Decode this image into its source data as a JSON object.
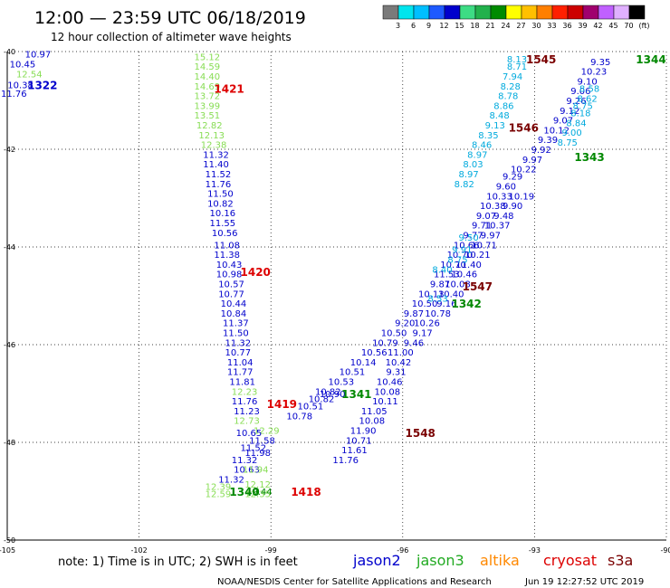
{
  "header": {
    "title": "12:00 — 23:59 UTC 06/18/2019",
    "subtitle": "12 hour collection of altimeter wave heights"
  },
  "colorbar": {
    "labels": [
      "3",
      "6",
      "9",
      "12",
      "15",
      "18",
      "21",
      "24",
      "27",
      "30",
      "33",
      "36",
      "39",
      "42",
      "45",
      "70",
      "(ft)"
    ],
    "colors": [
      "#7a7a7a",
      "#00e5ee",
      "#00bfff",
      "#1e5aff",
      "#0000cd",
      "#3ddc84",
      "#22b14c",
      "#008b00",
      "#ffff00",
      "#ffc000",
      "#ff7f00",
      "#ff2000",
      "#cc0000",
      "#a0006e",
      "#c060ff",
      "#e0b0ff",
      "#000000"
    ]
  },
  "footer": {
    "note": "note:  1) Time is in UTC;  2) SWH is in feet",
    "credit": "NOAA/NESDIS Center for Satellite Applications and Research",
    "timestamp": "Jun 19 12:27:52 UTC 2019"
  },
  "chart_data": {
    "type": "scatter",
    "xlim": [
      -105,
      -90
    ],
    "ylim": [
      -50,
      -40
    ],
    "xticks": [
      -105,
      -102,
      -99,
      -96,
      -93,
      -90
    ],
    "yticks": [
      -40,
      -42,
      -44,
      -46,
      -48,
      -50
    ],
    "grid": true,
    "legend_position": "bottom",
    "legend": [
      {
        "name": "jason2",
        "color": "#0000cc"
      },
      {
        "name": "jason3",
        "color": "#22aa22"
      },
      {
        "name": "altika",
        "color": "#ff8800"
      },
      {
        "name": "cryosat",
        "color": "#dd0000"
      },
      {
        "name": "s3a",
        "color": "#7a0000"
      }
    ],
    "tracks": [
      {
        "color": "#0000cc",
        "points": [
          {
            "x": -104.3,
            "y": -40.05,
            "v": "10.97"
          },
          {
            "x": -104.65,
            "y": -40.25,
            "v": "10.45"
          },
          {
            "x": -104.7,
            "y": -40.68,
            "v": "10.38"
          },
          {
            "x": -104.85,
            "y": -40.85,
            "v": "11.76"
          }
        ]
      },
      {
        "color": "#88dd55",
        "points": [
          {
            "x": -104.5,
            "y": -40.45,
            "v": "12.54"
          }
        ]
      },
      {
        "color": "#88dd55",
        "points": [
          {
            "x": -100.45,
            "y": -40.1,
            "v": "15.12"
          },
          {
            "x": -100.45,
            "y": -40.3,
            "v": "14.59"
          },
          {
            "x": -100.45,
            "y": -40.5,
            "v": "14.40"
          },
          {
            "x": -100.45,
            "y": -40.7,
            "v": "14.69"
          },
          {
            "x": -100.45,
            "y": -40.9,
            "v": "13.72"
          },
          {
            "x": -100.45,
            "y": -41.1,
            "v": "13.99"
          },
          {
            "x": -100.45,
            "y": -41.3,
            "v": "13.51"
          },
          {
            "x": -100.4,
            "y": -41.5,
            "v": "12.82"
          },
          {
            "x": -100.35,
            "y": -41.7,
            "v": "12.13"
          },
          {
            "x": -100.3,
            "y": -41.9,
            "v": "12.38"
          }
        ]
      },
      {
        "color": "#0000cc",
        "points": [
          {
            "x": -100.25,
            "y": -42.1,
            "v": "11.32"
          },
          {
            "x": -100.25,
            "y": -42.3,
            "v": "11.40"
          },
          {
            "x": -100.2,
            "y": -42.5,
            "v": "11.52"
          },
          {
            "x": -100.2,
            "y": -42.7,
            "v": "11.76"
          },
          {
            "x": -100.15,
            "y": -42.9,
            "v": "11.50"
          },
          {
            "x": -100.15,
            "y": -43.1,
            "v": "10.82"
          },
          {
            "x": -100.1,
            "y": -43.3,
            "v": "10.16"
          },
          {
            "x": -100.1,
            "y": -43.5,
            "v": "11.55"
          },
          {
            "x": -100.05,
            "y": -43.7,
            "v": "10.56"
          },
          {
            "x": -100.0,
            "y": -43.95,
            "v": "11.08"
          },
          {
            "x": -100.0,
            "y": -44.15,
            "v": "11.38"
          },
          {
            "x": -99.95,
            "y": -44.35,
            "v": "10.43"
          },
          {
            "x": -99.95,
            "y": -44.55,
            "v": "10.98"
          },
          {
            "x": -99.9,
            "y": -44.75,
            "v": "10.57"
          },
          {
            "x": -99.9,
            "y": -44.95,
            "v": "10.77"
          },
          {
            "x": -99.85,
            "y": -45.15,
            "v": "10.44"
          },
          {
            "x": -99.85,
            "y": -45.35,
            "v": "10.84"
          },
          {
            "x": -99.8,
            "y": -45.55,
            "v": "11.37"
          },
          {
            "x": -99.8,
            "y": -45.75,
            "v": "11.50"
          },
          {
            "x": -99.75,
            "y": -45.95,
            "v": "11.32"
          },
          {
            "x": -99.75,
            "y": -46.15,
            "v": "10.77"
          },
          {
            "x": -99.7,
            "y": -46.35,
            "v": "11.04"
          },
          {
            "x": -99.7,
            "y": -46.55,
            "v": "11.77"
          },
          {
            "x": -99.65,
            "y": -46.75,
            "v": "11.81"
          }
        ]
      },
      {
        "color": "#88dd55",
        "points": [
          {
            "x": -99.6,
            "y": -46.95,
            "v": "12.23"
          }
        ]
      },
      {
        "color": "#0000cc",
        "points": [
          {
            "x": -99.6,
            "y": -47.15,
            "v": "11.76"
          },
          {
            "x": -99.55,
            "y": -47.35,
            "v": "11.23"
          }
        ]
      },
      {
        "color": "#88dd55",
        "points": [
          {
            "x": -99.55,
            "y": -47.55,
            "v": "12.73"
          },
          {
            "x": -99.1,
            "y": -47.75,
            "v": "12.29"
          }
        ]
      },
      {
        "color": "#0000cc",
        "points": [
          {
            "x": -99.5,
            "y": -47.8,
            "v": "10.65"
          },
          {
            "x": -99.2,
            "y": -47.95,
            "v": "11.58"
          },
          {
            "x": -99.4,
            "y": -48.1,
            "v": "11.52"
          },
          {
            "x": -99.3,
            "y": -48.2,
            "v": "11.98"
          },
          {
            "x": -99.6,
            "y": -48.35,
            "v": "11.32"
          },
          {
            "x": -99.55,
            "y": -48.55,
            "v": "10.63"
          },
          {
            "x": -99.9,
            "y": -48.75,
            "v": "11.32"
          }
        ]
      },
      {
        "color": "#88dd55",
        "points": [
          {
            "x": -99.35,
            "y": -48.55,
            "v": "11.94"
          },
          {
            "x": -99.3,
            "y": -48.85,
            "v": "12.12"
          },
          {
            "x": -100.2,
            "y": -48.9,
            "v": "12.39"
          },
          {
            "x": -100.2,
            "y": -49.05,
            "v": "12.59"
          },
          {
            "x": -99.3,
            "y": -49.05,
            "v": "12.35"
          }
        ]
      },
      {
        "color": "#0000cc",
        "points": [
          {
            "x": -97.6,
            "y": -47.0,
            "v": "10.90"
          },
          {
            "x": -97.85,
            "y": -47.1,
            "v": "10.82"
          },
          {
            "x": -98.1,
            "y": -47.25,
            "v": "10.51"
          },
          {
            "x": -98.35,
            "y": -47.45,
            "v": "10.78"
          },
          {
            "x": -97.7,
            "y": -46.95,
            "v": "10.82"
          },
          {
            "x": -97.4,
            "y": -46.75,
            "v": "10.53"
          },
          {
            "x": -97.15,
            "y": -46.55,
            "v": "10.51"
          },
          {
            "x": -96.9,
            "y": -46.35,
            "v": "10.14"
          },
          {
            "x": -96.65,
            "y": -46.15,
            "v": "10.56"
          },
          {
            "x": -96.4,
            "y": -45.95,
            "v": "10.79"
          },
          {
            "x": -96.2,
            "y": -45.75,
            "v": "10.50"
          },
          {
            "x": -95.95,
            "y": -45.55,
            "v": "9.20"
          },
          {
            "x": -95.75,
            "y": -45.35,
            "v": "9.87"
          },
          {
            "x": -95.5,
            "y": -45.15,
            "v": "10.50"
          },
          {
            "x": -95.35,
            "y": -44.95,
            "v": "10.13"
          },
          {
            "x": -95.15,
            "y": -44.75,
            "v": "9.87"
          },
          {
            "x": -95.0,
            "y": -44.55,
            "v": "11.53"
          },
          {
            "x": -94.85,
            "y": -44.35,
            "v": "10.70"
          },
          {
            "x": -94.7,
            "y": -44.15,
            "v": "10.70"
          },
          {
            "x": -94.55,
            "y": -43.95,
            "v": "10.66"
          },
          {
            "x": -94.4,
            "y": -43.75,
            "v": "9.77"
          },
          {
            "x": -94.2,
            "y": -43.55,
            "v": "9.71"
          },
          {
            "x": -94.1,
            "y": -43.35,
            "v": "9.07"
          },
          {
            "x": -93.95,
            "y": -43.15,
            "v": "10.38"
          },
          {
            "x": -93.8,
            "y": -42.95,
            "v": "10.33"
          },
          {
            "x": -93.65,
            "y": -42.75,
            "v": "9.60"
          },
          {
            "x": -93.5,
            "y": -42.55,
            "v": "9.29"
          },
          {
            "x": -93.25,
            "y": -42.4,
            "v": "10.22"
          },
          {
            "x": -93.05,
            "y": -42.2,
            "v": "9.97"
          },
          {
            "x": -92.85,
            "y": -42.0,
            "v": "9.92"
          },
          {
            "x": -92.7,
            "y": -41.8,
            "v": "9.39"
          },
          {
            "x": -92.5,
            "y": -41.6,
            "v": "10.12"
          },
          {
            "x": -92.35,
            "y": -41.4,
            "v": "9.07"
          },
          {
            "x": -92.2,
            "y": -41.2,
            "v": "9.12"
          },
          {
            "x": -92.05,
            "y": -41.0,
            "v": "9.26"
          },
          {
            "x": -91.95,
            "y": -40.8,
            "v": "9.06"
          },
          {
            "x": -91.8,
            "y": -40.6,
            "v": "9.10"
          },
          {
            "x": -91.65,
            "y": -40.4,
            "v": "10.23"
          },
          {
            "x": -91.5,
            "y": -40.2,
            "v": "9.35"
          },
          {
            "x": -93.3,
            "y": -42.95,
            "v": "10.19"
          },
          {
            "x": -93.5,
            "y": -43.15,
            "v": "9.90"
          },
          {
            "x": -93.7,
            "y": -43.35,
            "v": "9.48"
          },
          {
            "x": -93.85,
            "y": -43.55,
            "v": "10.37"
          },
          {
            "x": -94.0,
            "y": -43.75,
            "v": "9.97"
          },
          {
            "x": -94.15,
            "y": -43.95,
            "v": "10.71"
          },
          {
            "x": -94.3,
            "y": -44.15,
            "v": "10.21"
          },
          {
            "x": -94.5,
            "y": -44.35,
            "v": "11.40"
          },
          {
            "x": -94.6,
            "y": -44.55,
            "v": "10.46"
          },
          {
            "x": -94.75,
            "y": -44.75,
            "v": "10.08"
          },
          {
            "x": -94.9,
            "y": -44.95,
            "v": "10.40"
          },
          {
            "x": -95.0,
            "y": -45.15,
            "v": "9.16"
          },
          {
            "x": -95.2,
            "y": -45.35,
            "v": "10.78"
          },
          {
            "x": -95.45,
            "y": -45.55,
            "v": "10.26"
          },
          {
            "x": -95.55,
            "y": -45.75,
            "v": "9.17"
          },
          {
            "x": -95.75,
            "y": -45.95,
            "v": "9.46"
          },
          {
            "x": -96.05,
            "y": -46.15,
            "v": "11.00"
          },
          {
            "x": -96.1,
            "y": -46.35,
            "v": "10.42"
          },
          {
            "x": -96.15,
            "y": -46.55,
            "v": "9.31"
          },
          {
            "x": -96.3,
            "y": -46.75,
            "v": "10.46"
          },
          {
            "x": -96.35,
            "y": -46.95,
            "v": "10.08"
          },
          {
            "x": -96.4,
            "y": -47.15,
            "v": "10.11"
          },
          {
            "x": -96.65,
            "y": -47.35,
            "v": "11.05"
          },
          {
            "x": -96.7,
            "y": -47.55,
            "v": "10.08"
          },
          {
            "x": -96.9,
            "y": -47.75,
            "v": "11.90"
          },
          {
            "x": -97.0,
            "y": -47.95,
            "v": "10.71"
          },
          {
            "x": -97.1,
            "y": -48.15,
            "v": "11.61"
          },
          {
            "x": -97.3,
            "y": -48.35,
            "v": "11.76"
          }
        ]
      },
      {
        "color": "#00aadd",
        "points": [
          {
            "x": -93.4,
            "y": -40.15,
            "v": "8.13"
          },
          {
            "x": -93.4,
            "y": -40.3,
            "v": "8.71"
          },
          {
            "x": -93.5,
            "y": -40.5,
            "v": "7.94"
          },
          {
            "x": -93.55,
            "y": -40.7,
            "v": "8.28"
          },
          {
            "x": -93.6,
            "y": -40.9,
            "v": "8.78"
          },
          {
            "x": -93.7,
            "y": -41.1,
            "v": "8.86"
          },
          {
            "x": -93.8,
            "y": -41.3,
            "v": "8.48"
          },
          {
            "x": -93.9,
            "y": -41.5,
            "v": "9.13"
          },
          {
            "x": -94.05,
            "y": -41.7,
            "v": "8.35"
          },
          {
            "x": -94.2,
            "y": -41.9,
            "v": "8.46"
          },
          {
            "x": -94.3,
            "y": -42.1,
            "v": "8.97"
          },
          {
            "x": -94.4,
            "y": -42.3,
            "v": "8.03"
          },
          {
            "x": -94.5,
            "y": -42.5,
            "v": "8.97"
          },
          {
            "x": -94.6,
            "y": -42.7,
            "v": "8.82"
          },
          {
            "x": -94.5,
            "y": -43.8,
            "v": "9.50"
          },
          {
            "x": -94.65,
            "y": -44.05,
            "v": "9.91"
          },
          {
            "x": -94.75,
            "y": -44.25,
            "v": "8.75"
          },
          {
            "x": -95.1,
            "y": -44.45,
            "v": "8.40"
          },
          {
            "x": -95.2,
            "y": -45.05,
            "v": "8.53"
          },
          {
            "x": -91.9,
            "y": -41.1,
            "v": "8.75"
          },
          {
            "x": -91.8,
            "y": -40.95,
            "v": "8.62"
          },
          {
            "x": -91.75,
            "y": -40.75,
            "v": "8.58"
          },
          {
            "x": -91.95,
            "y": -41.25,
            "v": "8.18"
          },
          {
            "x": -92.05,
            "y": -41.45,
            "v": "8.84"
          },
          {
            "x": -92.15,
            "y": -41.65,
            "v": "9.00"
          },
          {
            "x": -92.25,
            "y": -41.85,
            "v": "8.75"
          }
        ]
      },
      {
        "color": "#008800",
        "points": [
          {
            "x": -99.2,
            "y": -49.0,
            "v": "9.44"
          }
        ]
      }
    ],
    "pass_labels": [
      {
        "text": "1322",
        "x": -104.2,
        "y": -40.68,
        "color": "#0000cc"
      },
      {
        "text": "1421",
        "x": -99.95,
        "y": -40.75,
        "color": "#dd0000"
      },
      {
        "text": "1420",
        "x": -99.35,
        "y": -44.5,
        "color": "#dd0000"
      },
      {
        "text": "1419",
        "x": -98.75,
        "y": -47.2,
        "color": "#dd0000"
      },
      {
        "text": "1418",
        "x": -98.2,
        "y": -49.0,
        "color": "#dd0000"
      },
      {
        "text": "1340",
        "x": -99.6,
        "y": -49.0,
        "color": "#008800"
      },
      {
        "text": "1341",
        "x": -97.05,
        "y": -47.0,
        "color": "#008800"
      },
      {
        "text": "1342",
        "x": -94.55,
        "y": -45.15,
        "color": "#008800"
      },
      {
        "text": "1343",
        "x": -91.75,
        "y": -42.15,
        "color": "#008800"
      },
      {
        "text": "1344",
        "x": -90.35,
        "y": -40.15,
        "color": "#008800"
      },
      {
        "text": "1545",
        "x": -92.85,
        "y": -40.15,
        "color": "#7a0000"
      },
      {
        "text": "1546",
        "x": -93.25,
        "y": -41.55,
        "color": "#7a0000"
      },
      {
        "text": "1547",
        "x": -94.3,
        "y": -44.8,
        "color": "#7a0000"
      },
      {
        "text": "1548",
        "x": -95.6,
        "y": -47.8,
        "color": "#7a0000"
      }
    ]
  }
}
